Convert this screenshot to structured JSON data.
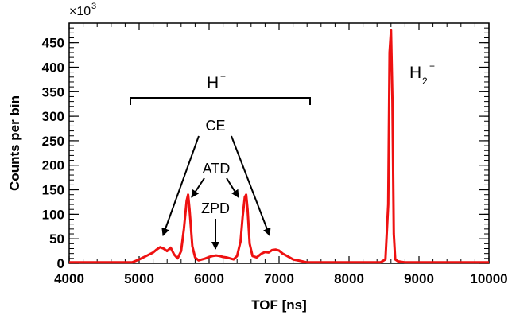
{
  "chart_data": {
    "type": "line",
    "xlabel": "TOF [ns]",
    "ylabel": "Counts per bin",
    "y_multiplier": "×10",
    "y_multiplier_exp": "3",
    "xlim": [
      4000,
      10000
    ],
    "ylim": [
      0,
      490
    ],
    "x_ticks": [
      "4000",
      "5000",
      "6000",
      "7000",
      "8000",
      "9000",
      "10000"
    ],
    "y_ticks": [
      "0",
      "50",
      "100",
      "150",
      "200",
      "250",
      "300",
      "350",
      "400",
      "450"
    ],
    "grid": false,
    "line_color": "#ee1111",
    "series": [
      {
        "x": [
          4000,
          4600,
          4900,
          5000,
          5100,
          5200,
          5250,
          5300,
          5350,
          5400,
          5450,
          5500,
          5550,
          5600,
          5640,
          5680,
          5700,
          5720,
          5760,
          5800,
          5850,
          5900,
          5950,
          6000,
          6050,
          6100,
          6150,
          6200,
          6250,
          6300,
          6350,
          6400,
          6450,
          6480,
          6510,
          6530,
          6550,
          6580,
          6620,
          6680,
          6750,
          6800,
          6850,
          6900,
          6950,
          7000,
          7050,
          7100,
          7200,
          7300,
          7400,
          7500,
          8000,
          8450,
          8520,
          8560,
          8580,
          8600,
          8620,
          8640,
          8660,
          8700,
          8800,
          9000,
          10000
        ],
        "y": [
          2,
          2,
          2,
          8,
          15,
          22,
          28,
          33,
          30,
          25,
          32,
          18,
          10,
          25,
          70,
          128,
          140,
          110,
          35,
          12,
          6,
          8,
          10,
          13,
          15,
          16,
          15,
          13,
          12,
          10,
          8,
          15,
          45,
          95,
          135,
          140,
          110,
          40,
          15,
          12,
          20,
          23,
          22,
          27,
          28,
          26,
          20,
          16,
          8,
          5,
          2,
          2,
          2,
          2,
          8,
          120,
          430,
          475,
          330,
          60,
          8,
          4,
          2,
          2,
          2
        ]
      }
    ]
  },
  "annotations": {
    "h_plus": "H",
    "h_plus_sup": "+",
    "h2_plus": "H",
    "h2_plus_sub": "2",
    "h2_plus_sup": "+",
    "ce": "CE",
    "atd": "ATD",
    "zpd": "ZPD"
  }
}
